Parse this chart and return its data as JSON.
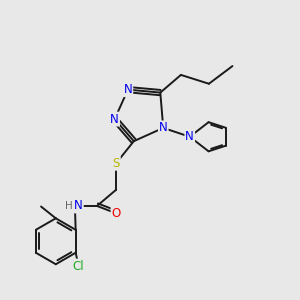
{
  "bg_color": "#e8e8e8",
  "bond_color": "#1a1a1a",
  "bond_width": 1.4,
  "atom_colors": {
    "N": "#0000ee",
    "S": "#b8b800",
    "O": "#ee0000",
    "Cl": "#22aa22",
    "H": "#666666"
  },
  "font_size": 8.5
}
